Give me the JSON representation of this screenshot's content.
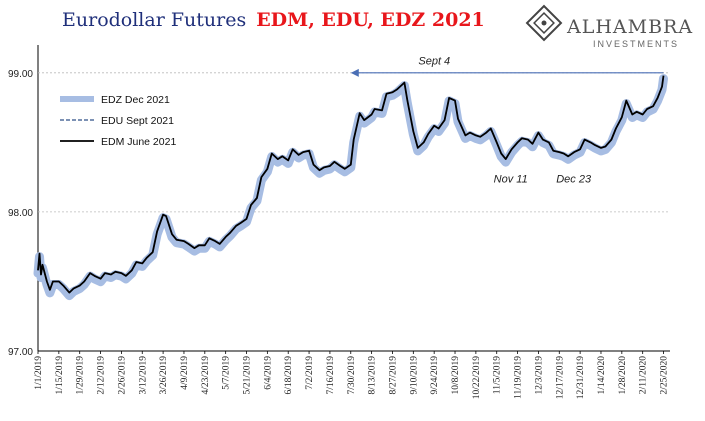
{
  "title": {
    "prefix": "Eurodollar Futures",
    "highlight": "EDM, EDU, EDZ 2021"
  },
  "logo": {
    "main": "ALHAMBRA",
    "sub": "INVESTMENTS"
  },
  "colors": {
    "edz": "#a7bde3",
    "edu": "#2e4f86",
    "edm": "#000000",
    "title_prefix": "#1f2f7a",
    "title_highlight": "#e8161b",
    "arrow": "#4a6fb5"
  },
  "chart_data": {
    "type": "line",
    "x_ticks": [
      "1/1/2019",
      "1/15/2019",
      "1/29/2019",
      "2/12/2019",
      "2/26/2019",
      "3/12/2019",
      "3/26/2019",
      "4/9/2019",
      "4/23/2019",
      "5/7/2019",
      "5/21/2019",
      "6/4/2019",
      "6/18/2019",
      "7/2/2019",
      "7/16/2019",
      "7/30/2019",
      "8/13/2019",
      "8/27/2019",
      "9/10/2019",
      "9/24/2019",
      "10/8/2019",
      "10/22/2019",
      "11/5/2019",
      "11/19/2019",
      "12/3/2019",
      "12/17/2019",
      "12/31/2019",
      "1/14/2020",
      "1/28/2020",
      "2/11/2020",
      "2/25/2020"
    ],
    "y_ticks": [
      "97.00",
      "98.00",
      "99.00"
    ],
    "ylim": [
      97.0,
      99.2
    ],
    "xlim": [
      "2019-01-01",
      "2020-02-28"
    ],
    "grid": "horizontal",
    "reference_line": 99.0,
    "legend_position": "top-left",
    "legend": [
      {
        "key": "edz",
        "label": "EDZ Dec 2021"
      },
      {
        "key": "edu",
        "label": "EDU Sept 2021"
      },
      {
        "key": "edm",
        "label": "EDM June 2021"
      }
    ],
    "annotations": [
      {
        "text": "Sept 4",
        "x": "2019-09-04",
        "y": 99.06
      },
      {
        "text": "Nov 11",
        "x": "2019-11-11",
        "y": 98.21
      },
      {
        "text": "Dec 23",
        "x": "2019-12-23",
        "y": 98.21
      }
    ],
    "arrow": {
      "from_x": "2020-02-25",
      "to_x": "2019-07-30",
      "y": 99.0
    },
    "series": {
      "edm": [
        [
          "2019-01-01",
          97.58
        ],
        [
          "2019-01-02",
          97.7
        ],
        [
          "2019-01-03",
          97.55
        ],
        [
          "2019-01-04",
          97.62
        ],
        [
          "2019-01-07",
          97.5
        ],
        [
          "2019-01-09",
          97.44
        ],
        [
          "2019-01-11",
          97.5
        ],
        [
          "2019-01-15",
          97.5
        ],
        [
          "2019-01-18",
          97.47
        ],
        [
          "2019-01-22",
          97.42
        ],
        [
          "2019-01-25",
          97.45
        ],
        [
          "2019-01-29",
          97.47
        ],
        [
          "2019-02-01",
          97.5
        ],
        [
          "2019-02-05",
          97.56
        ],
        [
          "2019-02-08",
          97.54
        ],
        [
          "2019-02-12",
          97.52
        ],
        [
          "2019-02-15",
          97.56
        ],
        [
          "2019-02-19",
          97.55
        ],
        [
          "2019-02-22",
          97.57
        ],
        [
          "2019-02-26",
          97.56
        ],
        [
          "2019-03-01",
          97.54
        ],
        [
          "2019-03-05",
          97.58
        ],
        [
          "2019-03-08",
          97.64
        ],
        [
          "2019-03-12",
          97.63
        ],
        [
          "2019-03-15",
          97.67
        ],
        [
          "2019-03-19",
          97.71
        ],
        [
          "2019-03-22",
          97.86
        ],
        [
          "2019-03-26",
          97.98
        ],
        [
          "2019-03-28",
          97.97
        ],
        [
          "2019-04-01",
          97.84
        ],
        [
          "2019-04-04",
          97.8
        ],
        [
          "2019-04-09",
          97.79
        ],
        [
          "2019-04-12",
          97.77
        ],
        [
          "2019-04-16",
          97.74
        ],
        [
          "2019-04-19",
          97.76
        ],
        [
          "2019-04-23",
          97.76
        ],
        [
          "2019-04-26",
          97.81
        ],
        [
          "2019-04-30",
          97.79
        ],
        [
          "2019-05-03",
          97.77
        ],
        [
          "2019-05-07",
          97.82
        ],
        [
          "2019-05-10",
          97.85
        ],
        [
          "2019-05-14",
          97.9
        ],
        [
          "2019-05-17",
          97.92
        ],
        [
          "2019-05-21",
          97.95
        ],
        [
          "2019-05-24",
          98.05
        ],
        [
          "2019-05-28",
          98.1
        ],
        [
          "2019-05-31",
          98.25
        ],
        [
          "2019-06-04",
          98.31
        ],
        [
          "2019-06-07",
          98.42
        ],
        [
          "2019-06-11",
          98.38
        ],
        [
          "2019-06-14",
          98.4
        ],
        [
          "2019-06-18",
          98.37
        ],
        [
          "2019-06-21",
          98.45
        ],
        [
          "2019-06-25",
          98.41
        ],
        [
          "2019-06-28",
          98.43
        ],
        [
          "2019-07-02",
          98.44
        ],
        [
          "2019-07-05",
          98.34
        ],
        [
          "2019-07-09",
          98.3
        ],
        [
          "2019-07-12",
          98.32
        ],
        [
          "2019-07-16",
          98.33
        ],
        [
          "2019-07-19",
          98.36
        ],
        [
          "2019-07-23",
          98.33
        ],
        [
          "2019-07-26",
          98.31
        ],
        [
          "2019-07-30",
          98.34
        ],
        [
          "2019-08-01",
          98.52
        ],
        [
          "2019-08-05",
          98.71
        ],
        [
          "2019-08-08",
          98.66
        ],
        [
          "2019-08-13",
          98.7
        ],
        [
          "2019-08-15",
          98.74
        ],
        [
          "2019-08-20",
          98.73
        ],
        [
          "2019-08-23",
          98.85
        ],
        [
          "2019-08-27",
          98.86
        ],
        [
          "2019-08-30",
          98.88
        ],
        [
          "2019-09-04",
          98.93
        ],
        [
          "2019-09-06",
          98.8
        ],
        [
          "2019-09-10",
          98.58
        ],
        [
          "2019-09-13",
          98.46
        ],
        [
          "2019-09-17",
          98.5
        ],
        [
          "2019-09-20",
          98.56
        ],
        [
          "2019-09-24",
          98.62
        ],
        [
          "2019-09-27",
          98.6
        ],
        [
          "2019-10-01",
          98.66
        ],
        [
          "2019-10-04",
          98.82
        ],
        [
          "2019-10-08",
          98.8
        ],
        [
          "2019-10-10",
          98.67
        ],
        [
          "2019-10-15",
          98.55
        ],
        [
          "2019-10-18",
          98.57
        ],
        [
          "2019-10-22",
          98.55
        ],
        [
          "2019-10-25",
          98.54
        ],
        [
          "2019-10-29",
          98.57
        ],
        [
          "2019-11-01",
          98.6
        ],
        [
          "2019-11-05",
          98.5
        ],
        [
          "2019-11-08",
          98.42
        ],
        [
          "2019-11-11",
          98.38
        ],
        [
          "2019-11-15",
          98.45
        ],
        [
          "2019-11-19",
          98.5
        ],
        [
          "2019-11-22",
          98.53
        ],
        [
          "2019-11-26",
          98.52
        ],
        [
          "2019-11-29",
          98.49
        ],
        [
          "2019-12-03",
          98.57
        ],
        [
          "2019-12-06",
          98.52
        ],
        [
          "2019-12-10",
          98.5
        ],
        [
          "2019-12-13",
          98.44
        ],
        [
          "2019-12-17",
          98.43
        ],
        [
          "2019-12-20",
          98.42
        ],
        [
          "2019-12-23",
          98.4
        ],
        [
          "2019-12-27",
          98.43
        ],
        [
          "2019-12-31",
          98.45
        ],
        [
          "2020-01-03",
          98.52
        ],
        [
          "2020-01-07",
          98.5
        ],
        [
          "2020-01-10",
          98.48
        ],
        [
          "2020-01-14",
          98.46
        ],
        [
          "2020-01-17",
          98.47
        ],
        [
          "2020-01-21",
          98.52
        ],
        [
          "2020-01-24",
          98.6
        ],
        [
          "2020-01-28",
          98.68
        ],
        [
          "2020-01-31",
          98.8
        ],
        [
          "2020-02-04",
          98.7
        ],
        [
          "2020-02-07",
          98.72
        ],
        [
          "2020-02-11",
          98.7
        ],
        [
          "2020-02-14",
          98.74
        ],
        [
          "2020-02-18",
          98.76
        ],
        [
          "2020-02-21",
          98.82
        ],
        [
          "2020-02-24",
          98.9
        ],
        [
          "2020-02-25",
          98.98
        ]
      ]
    }
  }
}
